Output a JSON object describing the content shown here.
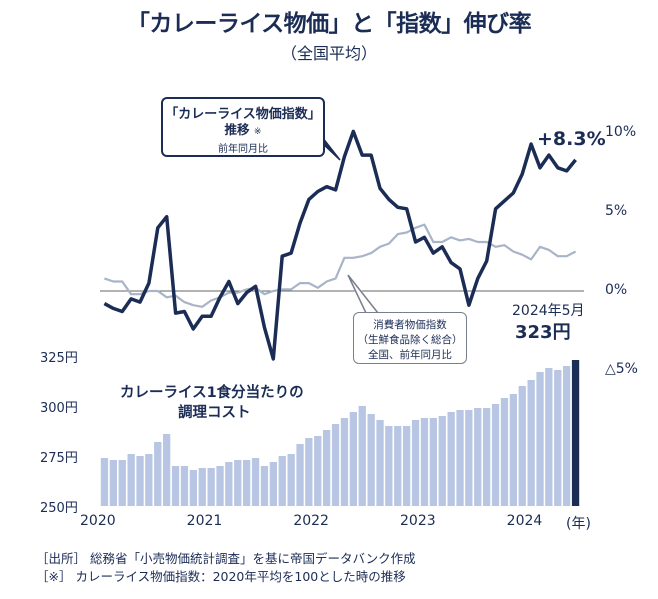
{
  "title": "「カレーライス物価」と「指数」伸び率",
  "subtitle": "（全国平均）",
  "curry_callout": {
    "line1": "「カレーライス物価指数」",
    "line2": "推移",
    "mark": "※",
    "line3": "前年同月比"
  },
  "cpi_callout": {
    "line1": "消費者物価指数",
    "line2": "（生鮮食品除く総合）",
    "line3": "全国、前年同月比"
  },
  "latest_change_label": "+8.3%",
  "latest_cost": {
    "date": "2024年5月",
    "value": "323円"
  },
  "bar_title": {
    "line1": "カレーライス1食分当たりの",
    "line2": "調理コスト"
  },
  "footnotes": {
    "source": "［出所］ 総務省「小売物価統計調査」を基に帝国データバンク作成",
    "note": "［※］ カレーライス物価指数：2020年平均を100とした時の推移"
  },
  "colors": {
    "curry_line": "#1b2c55",
    "cpi_line": "#a9b4c8",
    "bars": "#b8c6e3",
    "highlight_bar": "#1b2c55"
  },
  "chart_data": [
    {
      "type": "line",
      "title": "「カレーライス物価指数」推移 前年同月比",
      "ylabel": "%",
      "ylim": [
        -5,
        10
      ],
      "yticks": [
        10,
        5,
        0,
        -5
      ],
      "ytick_labels": [
        "10%",
        "5%",
        "0%",
        "△5%"
      ],
      "x_start": "2020-01",
      "x_labels": [
        "2020",
        "2021",
        "2022",
        "2023",
        "2024",
        "(年)"
      ],
      "series": [
        {
          "name": "カレーライス物価指数",
          "values": [
            -0.8,
            -1.1,
            -1.3,
            -0.5,
            -0.7,
            0.5,
            4.0,
            4.7,
            -1.4,
            -1.3,
            -2.4,
            -1.6,
            -1.6,
            -0.4,
            0.6,
            -0.8,
            -0.1,
            0.3,
            -2.3,
            -4.3,
            2.2,
            2.4,
            4.3,
            5.8,
            6.3,
            6.6,
            6.4,
            8.5,
            10.1,
            8.6,
            8.6,
            6.5,
            5.8,
            5.3,
            5.2,
            3.1,
            3.4,
            2.4,
            2.8,
            1.8,
            1.4,
            -0.9,
            0.8,
            1.9,
            5.2,
            5.7,
            6.2,
            7.4,
            9.3,
            7.8,
            8.6,
            7.8,
            7.6,
            8.3
          ]
        },
        {
          "name": "消費者物価指数（生鮮食品除く総合）",
          "values": [
            0.8,
            0.6,
            0.6,
            -0.2,
            -0.2,
            0.0,
            0.0,
            -0.4,
            -0.3,
            -0.7,
            -0.9,
            -1.0,
            -0.6,
            -0.4,
            -0.1,
            -0.1,
            0.1,
            0.2,
            -0.2,
            0.0,
            0.1,
            0.1,
            0.5,
            0.5,
            0.2,
            0.6,
            0.8,
            2.1,
            2.1,
            2.2,
            2.4,
            2.8,
            3.0,
            3.6,
            3.7,
            4.0,
            4.2,
            3.1,
            3.1,
            3.4,
            3.2,
            3.3,
            3.1,
            3.1,
            2.8,
            2.9,
            2.5,
            2.3,
            2.0,
            2.8,
            2.6,
            2.2,
            2.2,
            2.5
          ]
        }
      ],
      "annotation": "+8.3%"
    },
    {
      "type": "bar",
      "title": "カレーライス1食分当たりの調理コスト",
      "ylabel": "円",
      "ylim": [
        250,
        325
      ],
      "yticks": [
        325,
        300,
        275,
        250
      ],
      "ytick_labels": [
        "325円",
        "300円",
        "275円",
        "250円"
      ],
      "x_start": "2020-01",
      "values": [
        274,
        273,
        273,
        276,
        275,
        276,
        282,
        286,
        270,
        270,
        268,
        269,
        269,
        270,
        272,
        273,
        273,
        274,
        270,
        272,
        275,
        276,
        281,
        284,
        285,
        288,
        291,
        294,
        297,
        300,
        296,
        293,
        290,
        290,
        290,
        293,
        294,
        294,
        295,
        297,
        298,
        298,
        299,
        299,
        301,
        304,
        306,
        310,
        313,
        317,
        319,
        318,
        320,
        323
      ],
      "highlight": {
        "label": "2024年5月",
        "value": 323
      }
    }
  ]
}
